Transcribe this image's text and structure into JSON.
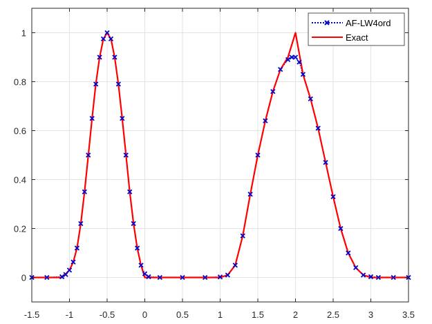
{
  "chart_data": {
    "type": "line",
    "title": "",
    "xlabel": "",
    "ylabel": "",
    "xlim": [
      -1.5,
      3.5
    ],
    "ylim": [
      -0.1,
      1.1
    ],
    "xticks": [
      -1.5,
      -1,
      -0.5,
      0,
      0.5,
      1,
      1.5,
      2,
      2.5,
      3,
      3.5
    ],
    "xtick_labels": [
      "-1.5",
      "-1",
      "-0.5",
      "0",
      "0.5",
      "1",
      "1.5",
      "2",
      "2.5",
      "3",
      "3.5"
    ],
    "yticks": [
      0,
      0.2,
      0.4,
      0.6,
      0.8,
      1
    ],
    "ytick_labels": [
      "0",
      "0.2",
      "0.4",
      "0.6",
      "0.8",
      "1"
    ],
    "grid": true,
    "legend_position": "top-right",
    "series": [
      {
        "name": "AF-LW4ord",
        "color": "#0000cc",
        "style": "dotted line with x markers",
        "x": [
          -1.5,
          -1.3,
          -1.1,
          -1.05,
          -1.0,
          -0.95,
          -0.9,
          -0.85,
          -0.8,
          -0.75,
          -0.7,
          -0.65,
          -0.6,
          -0.55,
          -0.5,
          -0.45,
          -0.4,
          -0.35,
          -0.3,
          -0.25,
          -0.2,
          -0.15,
          -0.1,
          -0.05,
          0.0,
          0.05,
          0.2,
          0.5,
          0.8,
          1.0,
          1.1,
          1.2,
          1.3,
          1.4,
          1.5,
          1.6,
          1.7,
          1.8,
          1.9,
          1.95,
          2.0,
          2.05,
          2.1,
          2.2,
          2.3,
          2.4,
          2.5,
          2.6,
          2.7,
          2.8,
          2.9,
          3.0,
          3.1,
          3.3,
          3.5
        ],
        "y": [
          0,
          0,
          0.003,
          0.012,
          0.03,
          0.063,
          0.12,
          0.22,
          0.35,
          0.5,
          0.65,
          0.79,
          0.9,
          0.975,
          1.0,
          0.975,
          0.9,
          0.79,
          0.65,
          0.5,
          0.35,
          0.22,
          0.12,
          0.05,
          0.015,
          0.003,
          0,
          0,
          0,
          0.002,
          0.01,
          0.05,
          0.17,
          0.34,
          0.5,
          0.64,
          0.76,
          0.85,
          0.89,
          0.9,
          0.9,
          0.88,
          0.83,
          0.73,
          0.61,
          0.47,
          0.33,
          0.2,
          0.1,
          0.04,
          0.01,
          0.003,
          0,
          0,
          0
        ]
      },
      {
        "name": "Exact",
        "color": "#ff0000",
        "style": "solid line",
        "x": [
          -1.5,
          -1.1,
          -1.0,
          -0.95,
          -0.9,
          -0.85,
          -0.8,
          -0.75,
          -0.7,
          -0.65,
          -0.6,
          -0.55,
          -0.5,
          -0.45,
          -0.4,
          -0.35,
          -0.3,
          -0.25,
          -0.2,
          -0.15,
          -0.1,
          -0.05,
          0.0,
          0.1,
          1.0,
          1.1,
          1.2,
          1.3,
          1.4,
          1.5,
          1.6,
          1.7,
          1.8,
          1.9,
          2.0,
          2.1,
          2.2,
          2.3,
          2.4,
          2.5,
          2.6,
          2.7,
          2.8,
          2.9,
          3.0,
          3.5
        ],
        "y": [
          0,
          0,
          0.03,
          0.063,
          0.12,
          0.22,
          0.35,
          0.5,
          0.65,
          0.79,
          0.9,
          0.975,
          1.0,
          0.975,
          0.9,
          0.79,
          0.65,
          0.5,
          0.35,
          0.22,
          0.12,
          0.05,
          0.0,
          0,
          0,
          0.01,
          0.05,
          0.17,
          0.34,
          0.5,
          0.64,
          0.76,
          0.85,
          0.9,
          1.0,
          0.83,
          0.73,
          0.61,
          0.47,
          0.33,
          0.2,
          0.1,
          0.04,
          0.01,
          0,
          0
        ]
      }
    ]
  }
}
